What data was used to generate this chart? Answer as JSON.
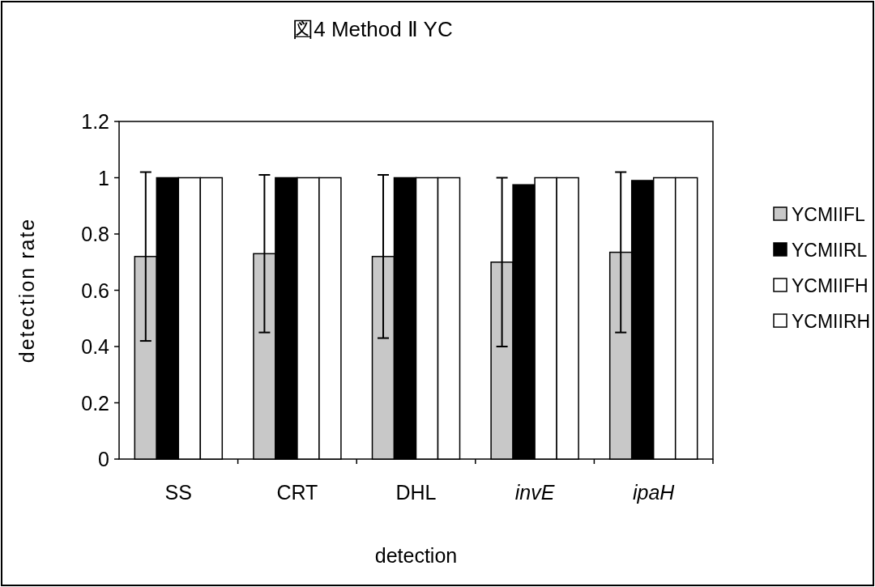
{
  "chart_data": {
    "type": "bar",
    "title": "図4 Method Ⅱ YC",
    "xlabel": "detection",
    "ylabel": "detection rate",
    "categories": [
      "SS",
      "CRT",
      "DHL",
      "*invE*",
      "*ipaH*"
    ],
    "series": [
      {
        "name": "YCMIIFL",
        "color": "#c8c8c8",
        "values": [
          0.72,
          0.73,
          0.72,
          0.7,
          0.735
        ],
        "errors": [
          0.3,
          0.28,
          0.29,
          0.3,
          0.285
        ]
      },
      {
        "name": "YCMIIRL",
        "color": "#000000",
        "values": [
          1,
          1,
          1,
          0.975,
          0.99
        ]
      },
      {
        "name": "YCMIIFH",
        "color": "#ffffff",
        "values": [
          1,
          1,
          1,
          1,
          1
        ]
      },
      {
        "name": "YCMIIRH",
        "color": "#ffffff",
        "values": [
          1,
          1,
          1,
          1,
          1
        ]
      }
    ],
    "ylim": [
      0,
      1.2
    ],
    "yticks": [
      0,
      0.2,
      0.4,
      0.6,
      0.8,
      1,
      1.2
    ],
    "grid": false,
    "legend": "right"
  }
}
